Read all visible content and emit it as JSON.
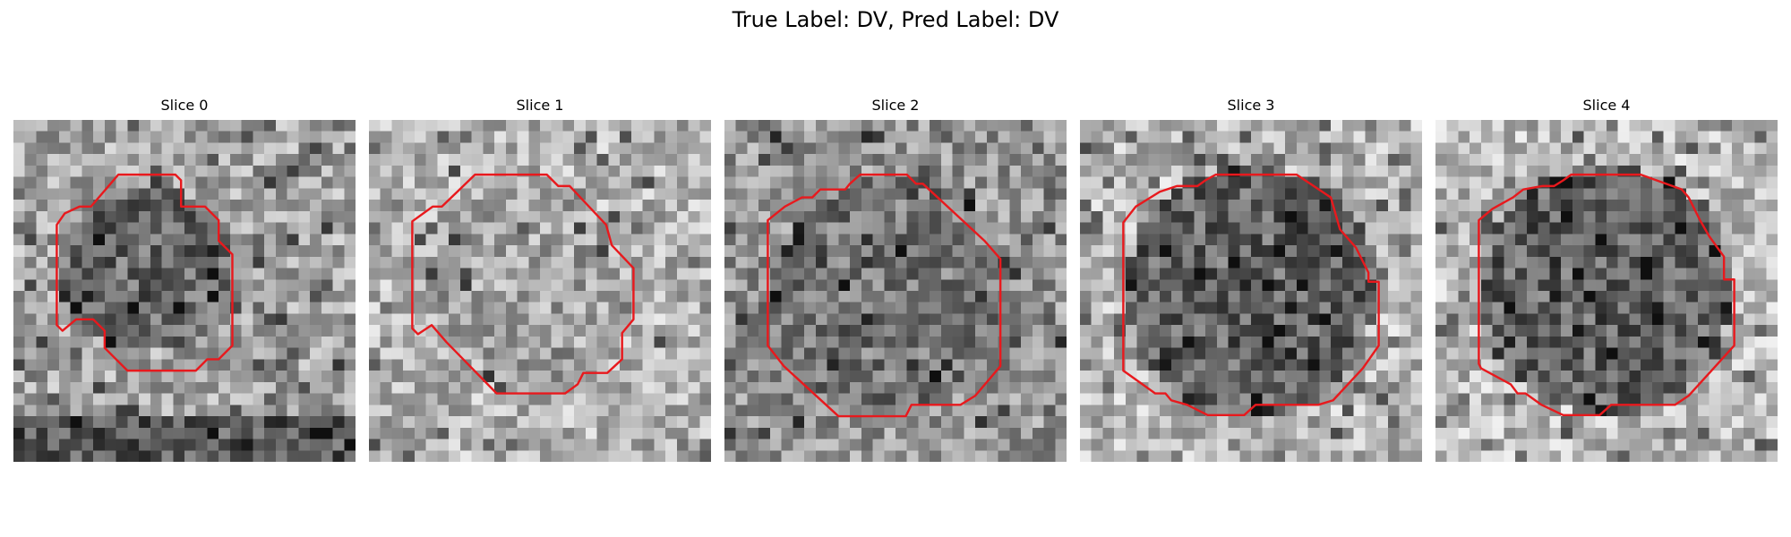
{
  "figure": {
    "title": "True Label: DV, Pred Label: DV"
  },
  "panels": [
    {
      "title": "Slice 0"
    },
    {
      "title": "Slice 1"
    },
    {
      "title": "Slice 2"
    },
    {
      "title": "Slice 3"
    },
    {
      "title": "Slice 4"
    }
  ],
  "colors": {
    "contour": "#e8191d",
    "background": "#ffffff"
  }
}
